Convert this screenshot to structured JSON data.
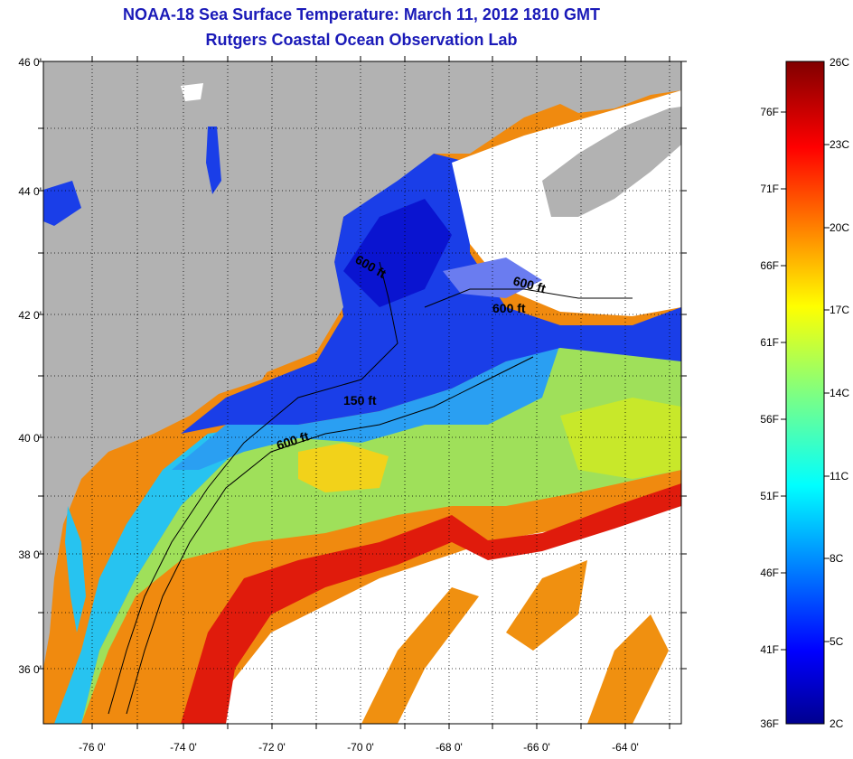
{
  "header": {
    "title": "NOAA-18 Sea Surface Temperature:  March 11, 2012 1810 GMT",
    "subtitle": "Rutgers Coastal Ocean Observation Lab"
  },
  "map": {
    "lat_labels": [
      "46 0'",
      "44 0'",
      "42 0'",
      "40 0'",
      "38 0'",
      "36 0'"
    ],
    "lon_labels": [
      "-76 0'",
      "-74 0'",
      "-72 0'",
      "-70 0'",
      "-68 0'",
      "-66 0'",
      "-64 0'"
    ],
    "lat_range": [
      35,
      46
    ],
    "lon_range": [
      -77,
      -63
    ],
    "isobath_labels": [
      "600 ft",
      "600 ft",
      "600 ft",
      "150 ft",
      "600 ft"
    ],
    "colors": {
      "land": "#b2b2b2",
      "cloud": "#ffffff",
      "cold": "#0000cd",
      "warm": "#e21b0c"
    }
  },
  "colorbar": {
    "fahrenheit_labels": [
      "36F",
      "41F",
      "46F",
      "51F",
      "56F",
      "61F",
      "66F",
      "71F",
      "76F"
    ],
    "celsius_labels": [
      "2C",
      "5C",
      "8C",
      "11C",
      "14C",
      "17C",
      "20C",
      "23C",
      "26C"
    ],
    "range_c": [
      2,
      26
    ],
    "colormap": "jet"
  }
}
